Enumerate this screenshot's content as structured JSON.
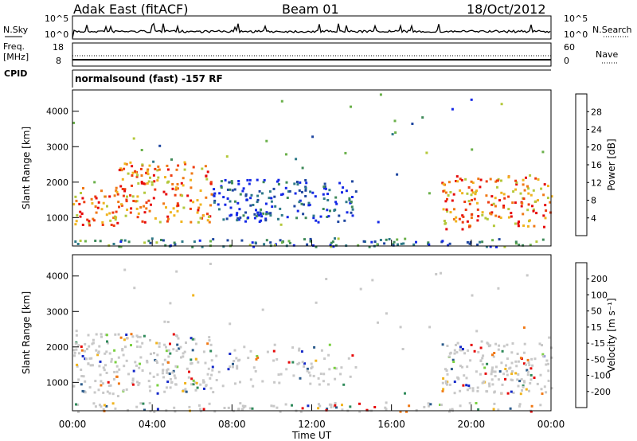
{
  "header": {
    "station": "Adak East (fitACF)",
    "beam": "Beam 01",
    "date": "18/Oct/2012"
  },
  "strip": {
    "nsky_label": "N.Sky",
    "nsearch_label": "N.Search",
    "nsky_ticks": [
      "10^5",
      "10^0"
    ],
    "nsearch_ticks": [
      "10^5",
      "10^0"
    ],
    "freq_label_1": "Freq.",
    "freq_label_2": "[MHz]",
    "freq_ticks": [
      "18",
      "8"
    ],
    "nave_label": "Nave",
    "nave_ticks": [
      "60",
      "0"
    ],
    "cpid_label": "CPID",
    "cpid_text": "normalsound (fast) -157 RF"
  },
  "chart_data": [
    {
      "type": "heatmap",
      "name": "power",
      "ylabel": "Slant Range [km]",
      "ylim": [
        200,
        4600
      ],
      "yticks": [
        1000,
        2000,
        3000,
        4000
      ],
      "xlim": [
        0,
        24
      ],
      "xticks": [
        "00:00",
        "04:00",
        "08:00",
        "12:00",
        "16:00",
        "20:00",
        "00:00"
      ],
      "colorbar": {
        "label": "Power [dB]",
        "ticks": [
          "28",
          "24",
          "20",
          "16",
          "12",
          "8",
          "4"
        ],
        "colors": [
          "#1428e6",
          "#1e46a0",
          "#2f7a88",
          "#3f8a5a",
          "#6ab04a",
          "#b4c83a",
          "#f0b41e",
          "#f07814",
          "#ee3c10",
          "#e60a0a"
        ]
      },
      "regions": [
        {
          "t": [
            0,
            2.3
          ],
          "r": [
            800,
            1900
          ],
          "level": "high"
        },
        {
          "t": [
            2.3,
            7
          ],
          "r": [
            900,
            2600
          ],
          "level": "high"
        },
        {
          "t": [
            7,
            14
          ],
          "r": [
            900,
            2100
          ],
          "level": "low"
        },
        {
          "t": [
            18.5,
            24
          ],
          "r": [
            700,
            2200
          ],
          "level": "high"
        }
      ]
    },
    {
      "type": "heatmap",
      "name": "velocity",
      "ylabel": "Slant Range [km]",
      "ylim": [
        200,
        4600
      ],
      "yticks": [
        1000,
        2000,
        3000,
        4000
      ],
      "xlim": [
        0,
        24
      ],
      "xticks": [
        "00:00",
        "04:00",
        "08:00",
        "12:00",
        "16:00",
        "20:00",
        "00:00"
      ],
      "xlabel": "Time UT",
      "colorbar": {
        "label": "Velocity [m s⁻¹]",
        "ticks": [
          "200",
          "100",
          "50",
          "15",
          "-15",
          "-50",
          "-100",
          "-200"
        ],
        "colors": [
          "#1428c8",
          "#2a5a8a",
          "#2f8a5a",
          "#7ad040",
          "#c8c8c8",
          "#f0b41e",
          "#f07814",
          "#e60a0a"
        ]
      }
    }
  ]
}
